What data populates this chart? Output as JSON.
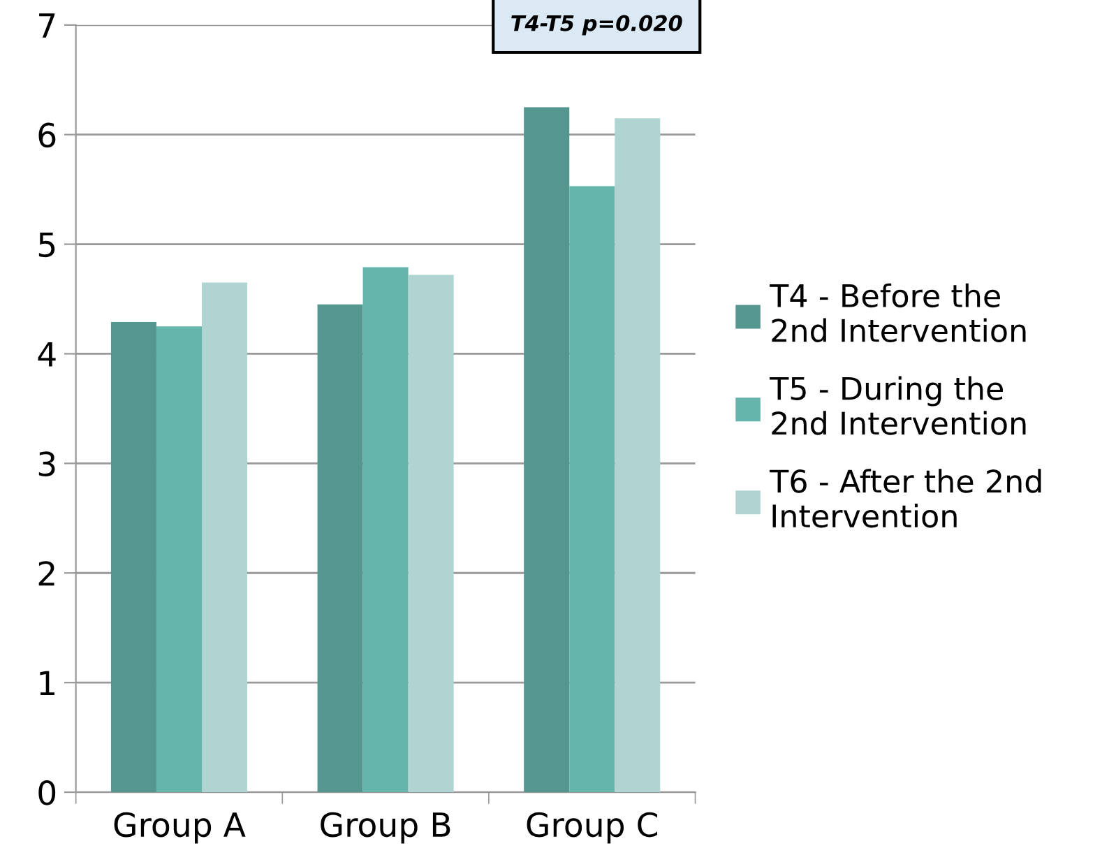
{
  "chart_data": {
    "type": "bar",
    "categories": [
      "Group A",
      "Group B",
      "Group C"
    ],
    "series": [
      {
        "name": "T4 - Before the\n2nd Intervention",
        "color": "#55968e",
        "values": [
          4.29,
          4.45,
          6.25
        ]
      },
      {
        "name": "T5 - During the\n2nd Intervention",
        "color": "#66b5ac",
        "values": [
          4.25,
          4.79,
          5.53
        ]
      },
      {
        "name": "T6 - After the 2nd\nIntervention",
        "color": "#b0d4d1",
        "values": [
          4.65,
          4.72,
          6.15
        ]
      }
    ],
    "ylim": [
      0,
      7
    ],
    "yticks": [
      0,
      1,
      2,
      3,
      4,
      5,
      6,
      7
    ],
    "grid": "y",
    "legend": "right",
    "annotations": [
      "T4-T5 p=0.020"
    ]
  }
}
